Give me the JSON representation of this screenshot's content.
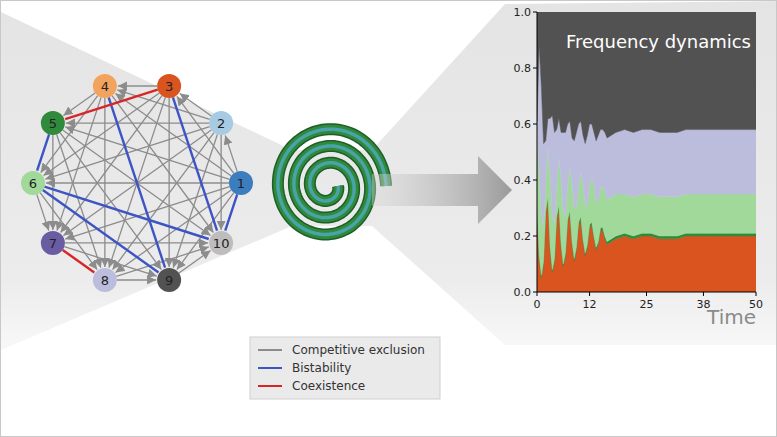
{
  "network": {
    "nodes": [
      {
        "label": "1",
        "color": "#3b7dbf"
      },
      {
        "label": "2",
        "color": "#a6cbe3"
      },
      {
        "label": "3",
        "color": "#d9541e"
      },
      {
        "label": "4",
        "color": "#f2a35e"
      },
      {
        "label": "5",
        "color": "#2f8a3c"
      },
      {
        "label": "6",
        "color": "#a1d99b"
      },
      {
        "label": "7",
        "color": "#6a5ca3"
      },
      {
        "label": "8",
        "color": "#bcbddc"
      },
      {
        "label": "9",
        "color": "#525252"
      },
      {
        "label": "10",
        "color": "#bdbdbd"
      }
    ],
    "legend": [
      {
        "label": "Competitive exclusion",
        "color": "#8c8c8c",
        "marker": "arrow",
        "edges": [
          [
            1,
            2
          ],
          [
            1,
            3
          ],
          [
            1,
            4
          ],
          [
            1,
            5
          ],
          [
            1,
            6
          ],
          [
            1,
            7
          ],
          [
            1,
            8
          ],
          [
            1,
            9
          ],
          [
            2,
            3
          ],
          [
            2,
            4
          ],
          [
            2,
            5
          ],
          [
            2,
            6
          ],
          [
            2,
            7
          ],
          [
            2,
            8
          ],
          [
            2,
            9
          ],
          [
            2,
            10
          ],
          [
            3,
            4
          ],
          [
            3,
            6
          ],
          [
            3,
            7
          ],
          [
            3,
            8
          ],
          [
            3,
            9
          ],
          [
            4,
            5
          ],
          [
            4,
            6
          ],
          [
            4,
            7
          ],
          [
            4,
            8
          ],
          [
            4,
            10
          ],
          [
            5,
            7
          ],
          [
            5,
            8
          ],
          [
            5,
            9
          ],
          [
            5,
            10
          ],
          [
            6,
            7
          ],
          [
            6,
            8
          ],
          [
            7,
            9
          ],
          [
            7,
            10
          ],
          [
            8,
            9
          ],
          [
            8,
            10
          ],
          [
            9,
            10
          ]
        ]
      },
      {
        "label": "Bistability",
        "color": "#3d55c4",
        "marker": "none",
        "edges": [
          [
            5,
            6
          ],
          [
            4,
            9
          ],
          [
            3,
            10
          ],
          [
            6,
            10
          ],
          [
            6,
            9
          ],
          [
            1,
            10
          ]
        ]
      },
      {
        "label": "Coexistence",
        "color": "#d62728",
        "marker": "none",
        "edges": [
          [
            3,
            5
          ],
          [
            7,
            8
          ]
        ]
      }
    ]
  },
  "chart_data": {
    "type": "area",
    "stacked": true,
    "title": "Frequency dynamics",
    "x_label": "Time",
    "x": [
      0,
      0.5,
      1,
      1.5,
      2,
      2.5,
      3,
      3.5,
      4,
      4.5,
      5,
      5.5,
      6,
      6.5,
      7,
      7.5,
      8,
      8.5,
      9,
      9.5,
      10,
      10.5,
      11,
      11.5,
      12,
      12.5,
      13,
      13.5,
      14,
      14.5,
      15,
      15.5,
      16,
      18,
      20,
      22,
      24,
      26,
      28,
      30,
      32,
      34,
      36,
      38,
      40,
      42,
      44,
      46,
      48,
      50
    ],
    "series": [
      {
        "color": "#d9541e",
        "values": [
          0.3,
          0.12,
          0.05,
          0.1,
          0.28,
          0.33,
          0.15,
          0.07,
          0.11,
          0.26,
          0.3,
          0.16,
          0.09,
          0.13,
          0.25,
          0.28,
          0.17,
          0.11,
          0.15,
          0.24,
          0.26,
          0.18,
          0.13,
          0.16,
          0.23,
          0.24,
          0.19,
          0.15,
          0.17,
          0.22,
          0.22,
          0.19,
          0.17,
          0.19,
          0.2,
          0.19,
          0.2,
          0.2,
          0.19,
          0.19,
          0.19,
          0.2,
          0.2,
          0.2,
          0.2,
          0.2,
          0.2,
          0.2,
          0.2,
          0.2
        ]
      },
      {
        "color": "#2f8a3c",
        "values": [
          0.01,
          0.01,
          0.01,
          0.01,
          0.01,
          0.01,
          0.01,
          0.01,
          0.01,
          0.01,
          0.01,
          0.01,
          0.01,
          0.01,
          0.01,
          0.01,
          0.01,
          0.01,
          0.01,
          0.01,
          0.01,
          0.01,
          0.01,
          0.01,
          0.01,
          0.01,
          0.01,
          0.01,
          0.01,
          0.01,
          0.01,
          0.01,
          0.01,
          0.01,
          0.01,
          0.01,
          0.01,
          0.01,
          0.01,
          0.01,
          0.01,
          0.01,
          0.01,
          0.01,
          0.01,
          0.01,
          0.01,
          0.01,
          0.01,
          0.01
        ]
      },
      {
        "color": "#a1d99b",
        "values": [
          0.25,
          0.3,
          0.22,
          0.12,
          0.1,
          0.18,
          0.26,
          0.2,
          0.12,
          0.11,
          0.17,
          0.23,
          0.19,
          0.13,
          0.12,
          0.16,
          0.21,
          0.18,
          0.14,
          0.13,
          0.16,
          0.19,
          0.17,
          0.14,
          0.14,
          0.16,
          0.18,
          0.16,
          0.15,
          0.14,
          0.15,
          0.16,
          0.15,
          0.15,
          0.14,
          0.14,
          0.14,
          0.14,
          0.14,
          0.14,
          0.14,
          0.14,
          0.14,
          0.14,
          0.14,
          0.14,
          0.14,
          0.14,
          0.14,
          0.14
        ]
      },
      {
        "color": "#bcbddc",
        "values": [
          0.05,
          0.45,
          0.45,
          0.3,
          0.15,
          0.1,
          0.2,
          0.35,
          0.33,
          0.2,
          0.14,
          0.17,
          0.28,
          0.3,
          0.22,
          0.16,
          0.16,
          0.24,
          0.27,
          0.22,
          0.18,
          0.18,
          0.22,
          0.25,
          0.22,
          0.19,
          0.19,
          0.22,
          0.23,
          0.21,
          0.2,
          0.21,
          0.22,
          0.22,
          0.23,
          0.23,
          0.23,
          0.23,
          0.23,
          0.23,
          0.23,
          0.23,
          0.23,
          0.23,
          0.23,
          0.23,
          0.23,
          0.23,
          0.23,
          0.23
        ]
      },
      {
        "color": "#525252",
        "values": [
          0.39,
          0.12,
          0.27,
          0.47,
          0.46,
          0.38,
          0.38,
          0.37,
          0.43,
          0.42,
          0.38,
          0.43,
          0.43,
          0.43,
          0.4,
          0.39,
          0.45,
          0.46,
          0.43,
          0.4,
          0.39,
          0.44,
          0.47,
          0.44,
          0.4,
          0.4,
          0.43,
          0.46,
          0.44,
          0.42,
          0.42,
          0.43,
          0.45,
          0.43,
          0.42,
          0.43,
          0.42,
          0.42,
          0.43,
          0.43,
          0.43,
          0.42,
          0.42,
          0.42,
          0.42,
          0.42,
          0.42,
          0.42,
          0.42,
          0.42
        ]
      }
    ],
    "xlim": [
      0,
      50
    ],
    "xticks": [
      0,
      12,
      25,
      38,
      50
    ],
    "ylim": [
      0,
      1
    ],
    "yticks": [
      {
        "value": 0,
        "label": "0.0"
      },
      {
        "value": 0.2,
        "label": "0.2"
      },
      {
        "value": 0.4,
        "label": "0.4"
      },
      {
        "value": 0.6,
        "label": "0.6"
      },
      {
        "value": 0.8,
        "label": "0.8"
      },
      {
        "value": 1,
        "label": "1.0"
      }
    ],
    "grid": false
  }
}
